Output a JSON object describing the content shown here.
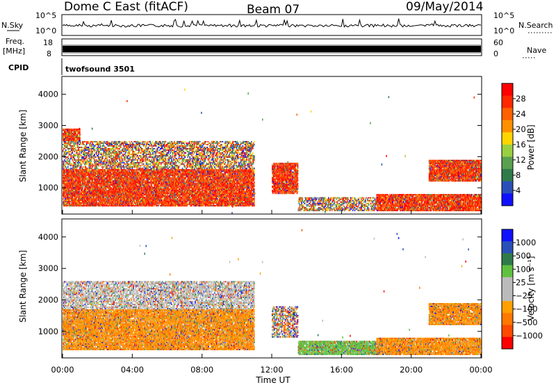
{
  "header": {
    "station": "Dome C East (fitACF)",
    "beam": "Beam 07",
    "date": "09/May/2014"
  },
  "top_panels": {
    "nsky_label": "N.Sky",
    "nsky_ticks": [
      "10^5",
      "10^0"
    ],
    "nsearch_label": "N.Search",
    "nsearch_ticks": [
      "10^5",
      "10^0"
    ],
    "freq_label_1": "Freq.",
    "freq_label_2": "[MHz]",
    "freq_ticks": [
      "18",
      "8"
    ],
    "nave_label": "Nave",
    "nave_ticks": [
      "60",
      "0"
    ],
    "cpid_label": "CPID",
    "cpid_value": "twofsound 3501"
  },
  "x_axis": {
    "label": "Time UT",
    "ticks": [
      "00:00",
      "04:00",
      "08:00",
      "12:00",
      "16:00",
      "20:00",
      "00:00"
    ]
  },
  "colors": {
    "power_scale": [
      "#1010ff",
      "#2a50b8",
      "#2f7a4a",
      "#5aa050",
      "#9ad040",
      "#ffd500",
      "#ff9000",
      "#ff6000",
      "#ff2800",
      "#ff0000"
    ],
    "velocity_scale": [
      "#ff0000",
      "#ff4a00",
      "#ff7800",
      "#ffa000",
      "#bbbbbb",
      "#bbbbbb",
      "#60c040",
      "#2f7a4a",
      "#2a50b8",
      "#1010ff"
    ]
  },
  "chart_data": [
    {
      "type": "heatmap",
      "name": "power-panel",
      "ylabel": "Slant Range [km]",
      "xlabel": "",
      "ylim": [
        180,
        4550
      ],
      "y_ticks": [
        "1000",
        "2000",
        "3000",
        "4000"
      ],
      "y_tick_values": [
        1000,
        2000,
        3000,
        4000
      ],
      "colorbar": {
        "label": "Power [dB]",
        "ticks": [
          "4",
          "8",
          "12",
          "16",
          "20",
          "24",
          "28"
        ],
        "range": [
          0,
          32
        ]
      },
      "regions": [
        {
          "t": [
            0,
            11
          ],
          "range_km": [
            400,
            1600
          ],
          "level": "high"
        },
        {
          "t": [
            0,
            11
          ],
          "range_km": [
            1600,
            2500
          ],
          "level": "mixed"
        },
        {
          "t": [
            0,
            1
          ],
          "range_km": [
            2500,
            2900
          ],
          "level": "high"
        },
        {
          "t": [
            12,
            13.5
          ],
          "range_km": [
            800,
            1800
          ],
          "level": "high"
        },
        {
          "t": [
            13.5,
            18
          ],
          "range_km": [
            250,
            700
          ],
          "level": "mixed"
        },
        {
          "t": [
            18,
            24
          ],
          "range_km": [
            250,
            800
          ],
          "level": "high"
        },
        {
          "t": [
            21,
            24
          ],
          "range_km": [
            1200,
            1900
          ],
          "level": "high"
        }
      ]
    },
    {
      "type": "heatmap",
      "name": "velocity-panel",
      "ylabel": "Slant Range [km]",
      "xlabel": "Time UT",
      "ylim": [
        180,
        4550
      ],
      "y_ticks": [
        "1000",
        "2000",
        "3000",
        "4000"
      ],
      "y_tick_values": [
        1000,
        2000,
        3000,
        4000
      ],
      "colorbar": {
        "label": "Velocity [m s⁻¹]",
        "ticks": [
          "1000",
          "500",
          "100",
          "25",
          "−25",
          "−100",
          "−500",
          "−1000"
        ]
      },
      "regions": [
        {
          "t": [
            0,
            11
          ],
          "range_km": [
            400,
            1700
          ],
          "level": "negative"
        },
        {
          "t": [
            0,
            11
          ],
          "range_km": [
            1700,
            2600
          ],
          "level": "near-zero"
        },
        {
          "t": [
            12,
            13.5
          ],
          "range_km": [
            800,
            1800
          ],
          "level": "mixed"
        },
        {
          "t": [
            13.5,
            18
          ],
          "range_km": [
            250,
            700
          ],
          "level": "positive"
        },
        {
          "t": [
            18,
            24
          ],
          "range_km": [
            250,
            800
          ],
          "level": "negative"
        },
        {
          "t": [
            21,
            24
          ],
          "range_km": [
            1200,
            1900
          ],
          "level": "negative"
        }
      ]
    }
  ]
}
